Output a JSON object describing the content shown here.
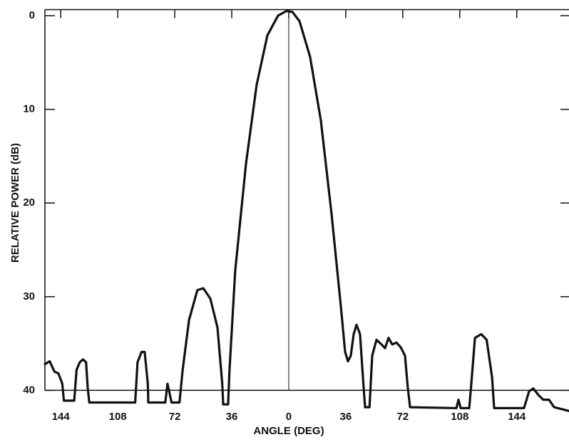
{
  "chart_data": {
    "type": "line",
    "x_label": "ANGLE (DEG)",
    "y_label": "RELATIVE POWER (dB)",
    "x": [
      -154,
      -151,
      -148,
      -145.5,
      -143,
      -142,
      -135.5,
      -134,
      -132,
      -130,
      -128,
      -127,
      -126,
      -97,
      -95.5,
      -93,
      -91,
      -89,
      -88.7,
      -78,
      -76.6,
      -75,
      -74,
      -69,
      -67,
      -63,
      -57.7,
      -54,
      -49.5,
      -45,
      -42,
      -41.4,
      -38.3,
      -37.4,
      -33.8,
      -27,
      -20.3,
      -13.5,
      -6.8,
      -1.4,
      2.3,
      6.8,
      13.5,
      20.3,
      27,
      32.9,
      35.6,
      37.4,
      39.2,
      41,
      42.8,
      45,
      47.3,
      48.2,
      51,
      52.7,
      55.4,
      58.6,
      60.8,
      63,
      65.3,
      68,
      70.7,
      73.4,
      75.2,
      76.6,
      105.9,
      107.2,
      108.6,
      114,
      115.3,
      117.6,
      121.6,
      125,
      128.4,
      129.7,
      148.6,
      151.8,
      154.5,
      157.7,
      160.8,
      164.4,
      167.6,
      177
    ],
    "series": [
      {
        "color": "#111111",
        "values": [
          37.2,
          36.9,
          38,
          38.2,
          39.3,
          41.1,
          41.1,
          37.8,
          37,
          36.7,
          37,
          39.7,
          41.3,
          41.3,
          37,
          35.9,
          35.9,
          39.3,
          41.3,
          41.3,
          39.3,
          40.5,
          41.3,
          41.3,
          37.8,
          32.5,
          29.3,
          29.1,
          30.2,
          33.3,
          39.3,
          41.5,
          41.5,
          37.8,
          27.2,
          15.8,
          7.4,
          2.1,
          0,
          -0.5,
          -0.4,
          0.6,
          4.4,
          11.2,
          21.1,
          31,
          35.9,
          36.9,
          36.3,
          34,
          33,
          34,
          39.7,
          41.8,
          41.8,
          36.3,
          34.6,
          35.1,
          35.5,
          34.4,
          35.1,
          34.9,
          35.4,
          36.3,
          39.7,
          41.8,
          41.9,
          41,
          41.9,
          41.9,
          39.3,
          34.4,
          34,
          34.6,
          38.6,
          41.9,
          41.9,
          40.1,
          39.8,
          40.5,
          41,
          41,
          41.8,
          42.2
        ]
      }
    ],
    "xlim": [
      -154,
      177
    ],
    "ylim": [
      -0.8,
      42.4
    ],
    "xticks": [
      {
        "value": -144,
        "label": "144"
      },
      {
        "value": -108,
        "label": "108"
      },
      {
        "value": -72,
        "label": "72"
      },
      {
        "value": -36,
        "label": "36"
      },
      0,
      36,
      72,
      108,
      144
    ],
    "yticks": [
      0,
      10,
      20,
      30,
      40
    ],
    "y_inverted": true
  }
}
